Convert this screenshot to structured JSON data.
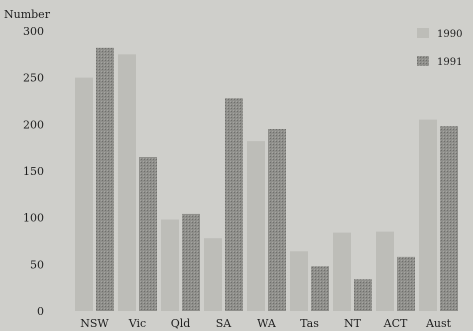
{
  "chart_data": {
    "type": "bar",
    "ylabel": "Number",
    "ylim": [
      0,
      300
    ],
    "yticks": [
      0,
      50,
      100,
      150,
      200,
      250,
      300
    ],
    "categories": [
      "NSW",
      "Vic",
      "Qld",
      "SA",
      "WA",
      "Tas",
      "NT",
      "ACT",
      "Aust"
    ],
    "series": [
      {
        "name": "1990",
        "values": [
          250,
          275,
          98,
          78,
          182,
          64,
          84,
          85,
          205
        ],
        "color": "#bdbdb8"
      },
      {
        "name": "1991",
        "values": [
          282,
          165,
          104,
          228,
          195,
          48,
          34,
          58,
          198
        ],
        "color": "#8e8e8a"
      }
    ],
    "grid": false,
    "legend_position": "top-right"
  }
}
